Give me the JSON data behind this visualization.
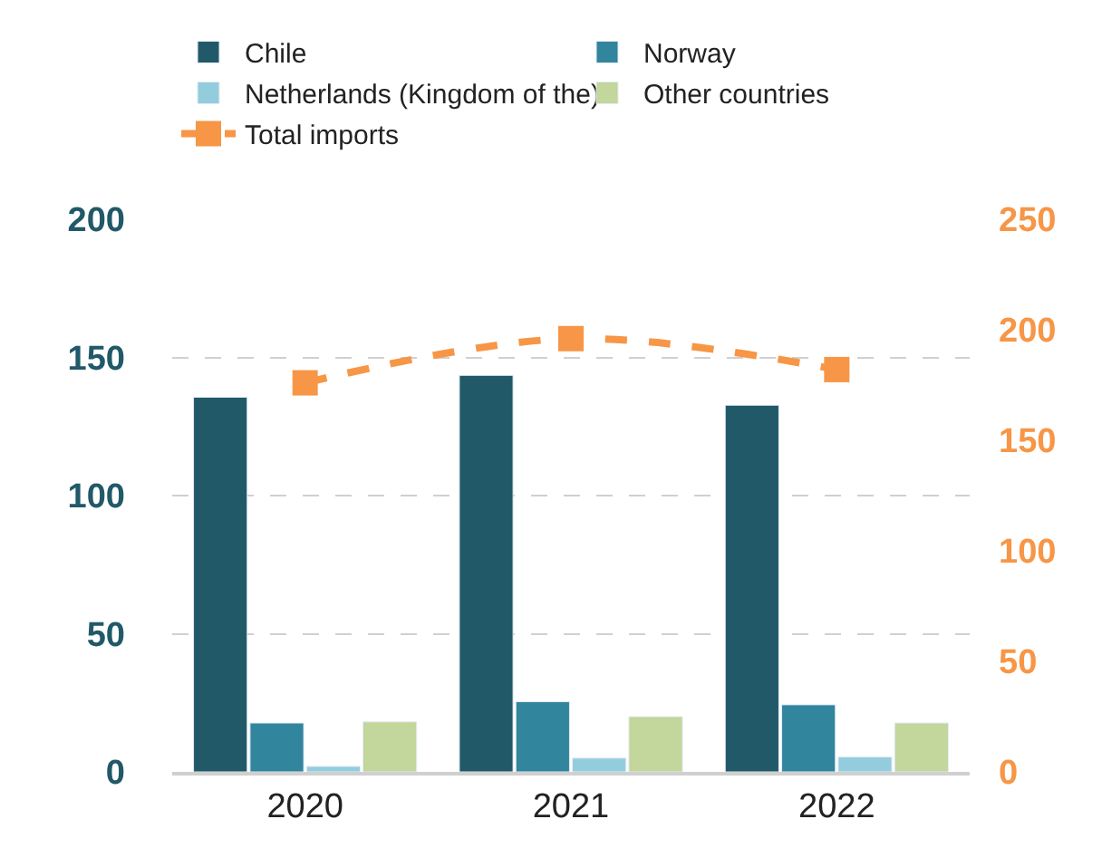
{
  "chart_data": {
    "type": "bar",
    "categories": [
      "2020",
      "2021",
      "2022"
    ],
    "series": [
      {
        "name": "Chile",
        "color": "#215968",
        "values": [
          135.6,
          143.5,
          132.7
        ]
      },
      {
        "name": "Norway",
        "color": "#31859c",
        "values": [
          17.7,
          25.4,
          24.3
        ]
      },
      {
        "name": "Netherlands (Kingdom of the)",
        "color": "#93cddd",
        "values": [
          2,
          5,
          5.4
        ]
      },
      {
        "name": "Other countries",
        "color": "#c3d69b",
        "values": [
          18.1,
          20,
          17.7
        ]
      },
      {
        "name": "Total imports",
        "type": "line",
        "axis": "y2",
        "color": "#f79646",
        "values": [
          176,
          196,
          182
        ],
        "marker": "square",
        "line_style": "dashed"
      }
    ],
    "ylim": [
      0,
      200
    ],
    "yticks": [
      0,
      50,
      100,
      150,
      200
    ],
    "y2lim": [
      0,
      250
    ],
    "y2ticks": [
      0,
      50,
      100,
      150,
      200,
      250
    ],
    "grid": "y",
    "legend": "top"
  }
}
